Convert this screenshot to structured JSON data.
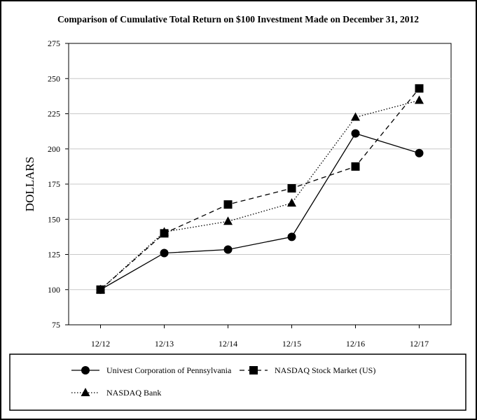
{
  "chart_data": {
    "type": "line",
    "title": "Comparison of Cumulative Total Return on $100 Investment Made on December 31, 2012",
    "xlabel": "",
    "ylabel": "DOLLARS",
    "categories": [
      "12/12",
      "12/13",
      "12/14",
      "12/15",
      "12/16",
      "12/17"
    ],
    "yticks": [
      75,
      100,
      125,
      150,
      175,
      200,
      225,
      250,
      275
    ],
    "ylim": [
      75,
      275
    ],
    "grid": true,
    "legend_position": "bottom",
    "series": [
      {
        "name": "Univest Corporation of Pennsylvania",
        "marker": "circle",
        "line_style": "solid",
        "values": [
          100,
          126,
          128.5,
          137.5,
          211,
          197
        ]
      },
      {
        "name": "NASDAQ Stock Market (US)",
        "marker": "square",
        "line_style": "dashed",
        "values": [
          100,
          140,
          160.5,
          172,
          187.5,
          243
        ]
      },
      {
        "name": "NASDAQ Bank",
        "marker": "triangle",
        "line_style": "dotted",
        "values": [
          100,
          141,
          148.5,
          161.5,
          222.5,
          234.5
        ]
      }
    ]
  }
}
